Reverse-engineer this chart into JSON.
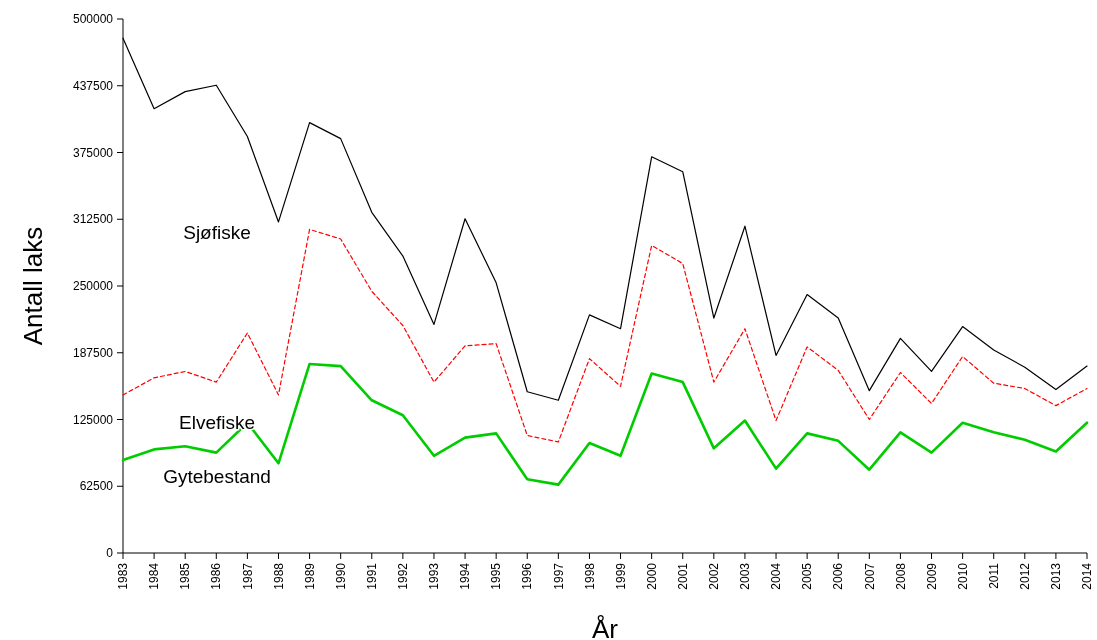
{
  "chart_data": {
    "type": "line",
    "xlabel": "År",
    "ylabel": "Antall laks",
    "categories": [
      "1983",
      "1984",
      "1985",
      "1986",
      "1987",
      "1988",
      "1989",
      "1990",
      "1991",
      "1992",
      "1993",
      "1994",
      "1995",
      "1996",
      "1997",
      "1998",
      "1999",
      "2000",
      "2001",
      "2002",
      "2003",
      "2004",
      "2005",
      "2006",
      "2007",
      "2008",
      "2009",
      "2010",
      "2011",
      "2012",
      "2013",
      "2014"
    ],
    "ylim": [
      0,
      500000
    ],
    "yticks": [
      0,
      62500,
      125000,
      187500,
      250000,
      312500,
      375000,
      437500,
      500000
    ],
    "grid": false,
    "marker": "none",
    "series": [
      {
        "color": "#000000",
        "line_style": "solid",
        "values": [
          482000,
          416000,
          432000,
          438000,
          390000,
          310000,
          403000,
          388000,
          319000,
          278000,
          214000,
          313000,
          253000,
          151000,
          143000,
          223000,
          210000,
          371000,
          357000,
          220000,
          306000,
          185000,
          242000,
          220000,
          152000,
          201000,
          170000,
          212000,
          190000,
          174000,
          153000,
          175000
        ]
      },
      {
        "color": "#ff0000",
        "line_style": "dashed",
        "values": [
          148000,
          164000,
          170000,
          160000,
          206000,
          148000,
          303000,
          294000,
          245000,
          213000,
          160000,
          194000,
          196000,
          110000,
          104000,
          182000,
          156000,
          288000,
          271000,
          160000,
          210000,
          124000,
          193000,
          171000,
          125000,
          169000,
          140000,
          184000,
          159000,
          154000,
          138000,
          154000
        ]
      },
      {
        "color": "#00cc00",
        "line_style": "solid",
        "values": [
          87000,
          97000,
          100000,
          94000,
          122000,
          84000,
          177000,
          175000,
          143000,
          129000,
          91000,
          108000,
          112000,
          69000,
          64000,
          103000,
          91000,
          168000,
          160000,
          98000,
          124000,
          79000,
          112000,
          105000,
          78000,
          113000,
          94000,
          122000,
          113000,
          106000,
          95000,
          122000
        ]
      }
    ],
    "annotations": [
      "Sjøfiske",
      "Elvefiske",
      "Gytebestand"
    ]
  }
}
